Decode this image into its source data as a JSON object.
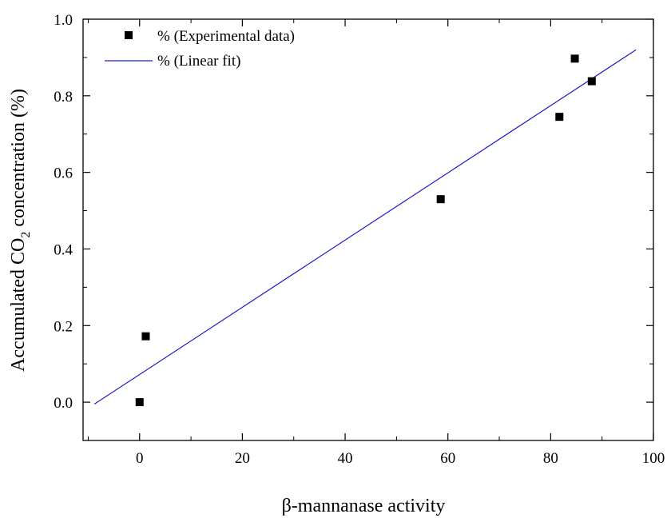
{
  "chart_data": {
    "type": "scatter",
    "title": "",
    "xlabel": "β-mannanase activity",
    "ylabel": {
      "prefix": "Accumulated CO",
      "subscript": "2",
      "suffix": " concentration (%)"
    },
    "xlim": [
      -11,
      100
    ],
    "ylim": [
      -0.1,
      1.0
    ],
    "x_ticks": [
      0,
      20,
      40,
      60,
      80,
      100
    ],
    "y_ticks": [
      0.0,
      0.2,
      0.4,
      0.6,
      0.8,
      1.0
    ],
    "x_tick_labels": [
      "0",
      "20",
      "40",
      "60",
      "80",
      "100"
    ],
    "y_tick_labels": [
      "0.0",
      "0.2",
      "0.4",
      "0.6",
      "0.8",
      "1.0"
    ],
    "grid": false,
    "legend_position": "top-left",
    "series": [
      {
        "name": "% (Experimental data)",
        "kind": "scatter",
        "marker": "square",
        "color": "#000000",
        "points": [
          {
            "x": 0.0,
            "y": 0.0
          },
          {
            "x": 1.2,
            "y": 0.172
          },
          {
            "x": 58.6,
            "y": 0.53
          },
          {
            "x": 81.7,
            "y": 0.745
          },
          {
            "x": 84.7,
            "y": 0.897
          },
          {
            "x": 88.0,
            "y": 0.838
          }
        ]
      },
      {
        "name": "% (Linear fit)",
        "kind": "line",
        "color": "#1a1acc",
        "points": [
          {
            "x": -8.8,
            "y": -0.005
          },
          {
            "x": 96.6,
            "y": 0.92
          }
        ]
      }
    ]
  }
}
